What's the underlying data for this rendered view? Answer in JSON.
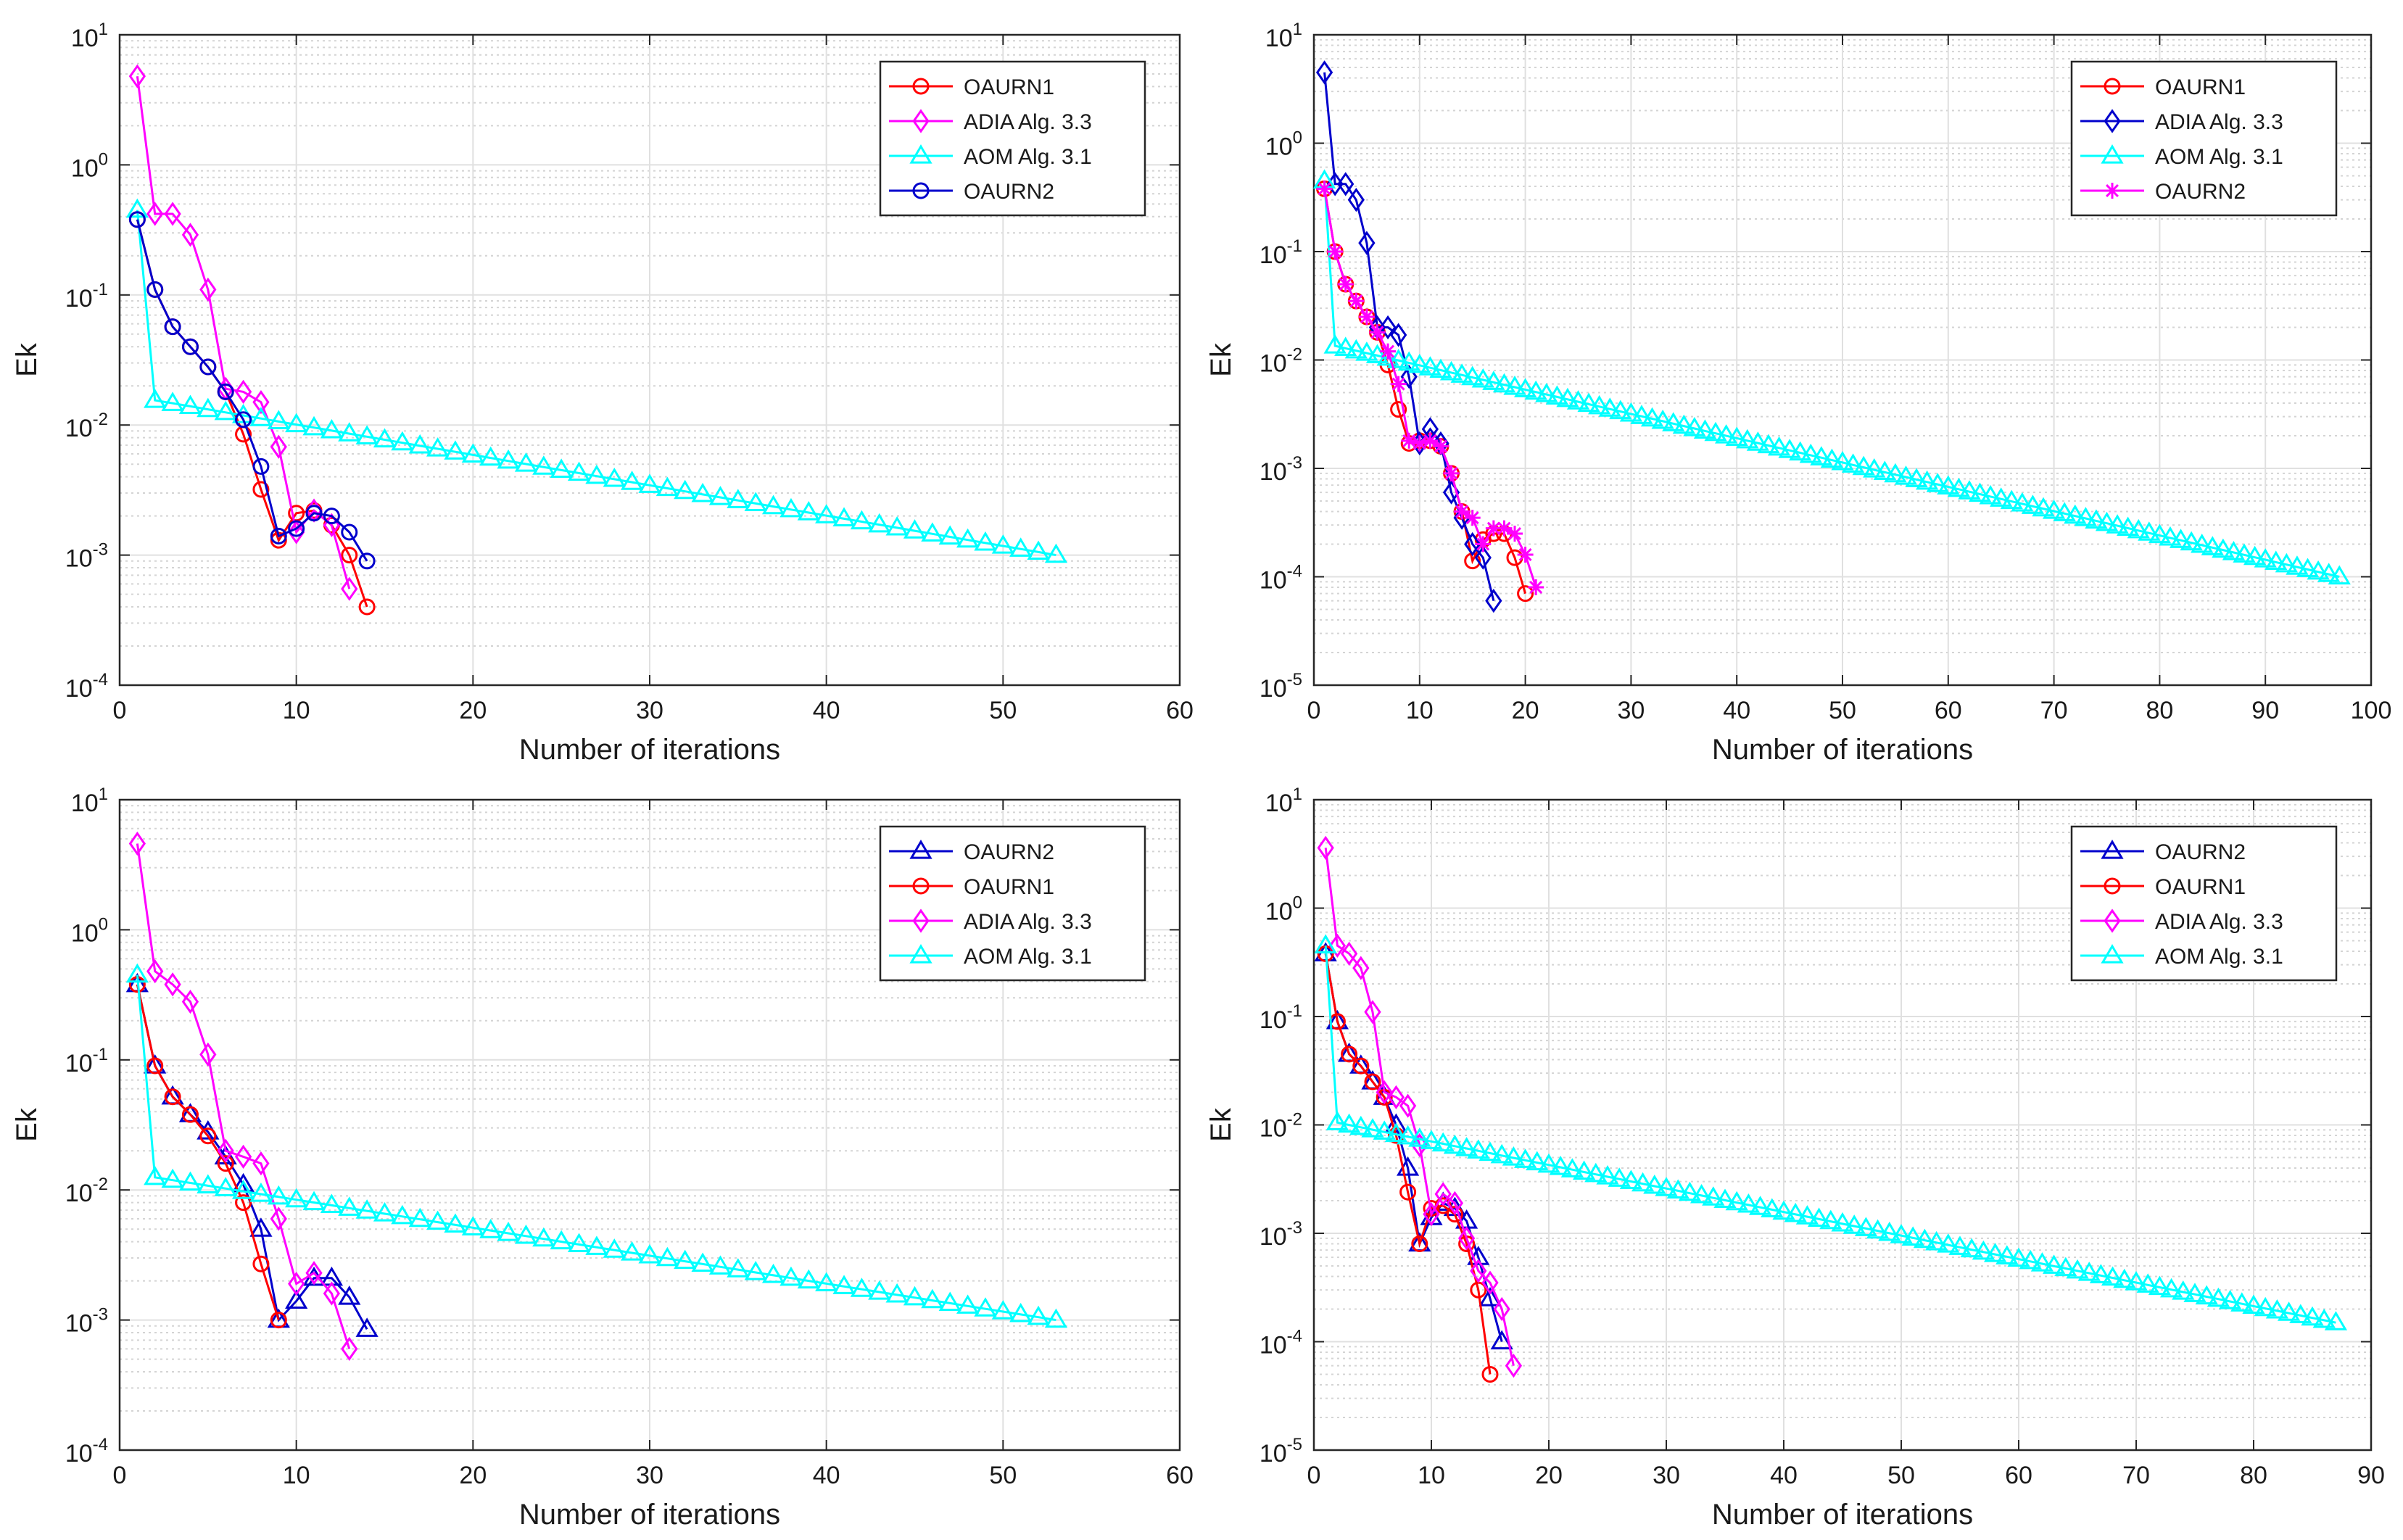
{
  "chart_data": [
    {
      "type": "line",
      "yscale": "log",
      "xlabel": "Number of iterations",
      "ylabel": "Ek",
      "xlim": [
        0,
        60
      ],
      "xticks": [
        "0",
        "10",
        "20",
        "30",
        "40",
        "50",
        "60"
      ],
      "ylim_exp": [
        -4,
        1
      ],
      "yticks": [
        {
          "base": "10",
          "exp": "-4"
        },
        {
          "base": "10",
          "exp": "-3"
        },
        {
          "base": "10",
          "exp": "-2"
        },
        {
          "base": "10",
          "exp": "-1"
        },
        {
          "base": "10",
          "exp": "0"
        },
        {
          "base": "10",
          "exp": "1"
        }
      ],
      "grid": true,
      "legend_position": "top-right",
      "series": [
        {
          "name": "OAURN1",
          "color": "#ff0000",
          "marker": "circle",
          "x": [
            1,
            2,
            3,
            4,
            5,
            6,
            7,
            8,
            9,
            10,
            11,
            12,
            13,
            14
          ],
          "y": [
            0.38,
            0.11,
            0.057,
            0.04,
            0.028,
            0.018,
            0.0085,
            0.0032,
            0.0013,
            0.0021,
            0.0022,
            0.0017,
            0.001,
            0.0004
          ]
        },
        {
          "name": "ADIA Alg. 3.3",
          "color": "#ff00ff",
          "marker": "diamond",
          "x": [
            1,
            2,
            3,
            4,
            5,
            6,
            7,
            8,
            9,
            10,
            11,
            12,
            13
          ],
          "y": [
            4.8,
            0.42,
            0.42,
            0.29,
            0.11,
            0.019,
            0.018,
            0.015,
            0.0068,
            0.0015,
            0.0022,
            0.0017,
            0.00055
          ]
        },
        {
          "name": "AOM Alg. 3.1",
          "color": "#00ffff",
          "marker": "triangle",
          "x_start": 1,
          "x_end": 53,
          "y_first": 0.45,
          "y_second": 0.0155,
          "y_last": 0.001
        },
        {
          "name": "OAURN2",
          "color": "#0000cc",
          "marker": "circle",
          "x": [
            1,
            2,
            3,
            4,
            5,
            6,
            7,
            8,
            9,
            10,
            11,
            12,
            13,
            14
          ],
          "y": [
            0.38,
            0.11,
            0.057,
            0.04,
            0.028,
            0.018,
            0.011,
            0.0048,
            0.0014,
            0.0016,
            0.0021,
            0.002,
            0.0015,
            0.0009
          ]
        }
      ]
    },
    {
      "type": "line",
      "yscale": "log",
      "xlabel": "Number of iterations",
      "ylabel": "Ek",
      "xlim": [
        0,
        100
      ],
      "xticks": [
        "0",
        "10",
        "20",
        "30",
        "40",
        "50",
        "60",
        "70",
        "80",
        "90",
        "100"
      ],
      "ylim_exp": [
        -5,
        1
      ],
      "yticks": [
        {
          "base": "10",
          "exp": "-5"
        },
        {
          "base": "10",
          "exp": "-4"
        },
        {
          "base": "10",
          "exp": "-3"
        },
        {
          "base": "10",
          "exp": "-2"
        },
        {
          "base": "10",
          "exp": "-1"
        },
        {
          "base": "10",
          "exp": "0"
        },
        {
          "base": "10",
          "exp": "1"
        }
      ],
      "grid": true,
      "legend_position": "top-right",
      "series": [
        {
          "name": "OAURN1",
          "color": "#ff0000",
          "marker": "circle",
          "x": [
            1,
            2,
            3,
            4,
            5,
            6,
            7,
            8,
            9,
            10,
            11,
            12,
            13,
            14,
            15,
            16,
            17,
            18,
            19,
            20
          ],
          "y": [
            0.38,
            0.1,
            0.05,
            0.035,
            0.025,
            0.018,
            0.009,
            0.0035,
            0.0017,
            0.0018,
            0.0018,
            0.0016,
            0.0009,
            0.0004,
            0.00014,
            0.00022,
            0.00025,
            0.00025,
            0.00015,
            7e-05
          ]
        },
        {
          "name": "ADIA Alg. 3.3",
          "color": "#0000cc",
          "marker": "diamond",
          "x": [
            1,
            2,
            3,
            4,
            5,
            6,
            7,
            8,
            9,
            10,
            11,
            12,
            13,
            14,
            15,
            16,
            17
          ],
          "y": [
            4.5,
            0.42,
            0.42,
            0.3,
            0.12,
            0.02,
            0.02,
            0.017,
            0.007,
            0.0017,
            0.0023,
            0.0017,
            0.0006,
            0.00035,
            0.0002,
            0.00015,
            6e-05
          ]
        },
        {
          "name": "AOM Alg. 3.1",
          "color": "#00ffff",
          "marker": "triangle",
          "x_start": 1,
          "x_end": 97,
          "y_first": 0.45,
          "y_second": 0.0135,
          "y_last": 0.0001
        },
        {
          "name": "OAURN2",
          "color": "#ff00ff",
          "marker": "star",
          "x": [
            1,
            2,
            3,
            4,
            5,
            6,
            7,
            8,
            9,
            10,
            11,
            12,
            13,
            14,
            15,
            16,
            17,
            18,
            19,
            20,
            21
          ],
          "y": [
            0.38,
            0.1,
            0.05,
            0.035,
            0.025,
            0.018,
            0.012,
            0.006,
            0.0018,
            0.0017,
            0.0018,
            0.0016,
            0.0009,
            0.0004,
            0.00035,
            0.0002,
            0.00028,
            0.00028,
            0.00025,
            0.00016,
            8e-05
          ]
        }
      ]
    },
    {
      "type": "line",
      "yscale": "log",
      "xlabel": "Number of iterations",
      "ylabel": "Ek",
      "xlim": [
        0,
        60
      ],
      "xticks": [
        "0",
        "10",
        "20",
        "30",
        "40",
        "50",
        "60"
      ],
      "ylim_exp": [
        -4,
        1
      ],
      "yticks": [
        {
          "base": "10",
          "exp": "-4"
        },
        {
          "base": "10",
          "exp": "-3"
        },
        {
          "base": "10",
          "exp": "-2"
        },
        {
          "base": "10",
          "exp": "-1"
        },
        {
          "base": "10",
          "exp": "0"
        },
        {
          "base": "10",
          "exp": "1"
        }
      ],
      "grid": true,
      "legend_position": "top-right",
      "series": [
        {
          "name": "OAURN2",
          "color": "#0000cc",
          "marker": "triangle",
          "x": [
            1,
            2,
            3,
            4,
            5,
            6,
            7,
            8,
            9,
            10,
            11,
            12,
            13,
            14
          ],
          "y": [
            0.38,
            0.09,
            0.052,
            0.038,
            0.028,
            0.018,
            0.011,
            0.005,
            0.001,
            0.0014,
            0.0021,
            0.0021,
            0.0015,
            0.00085
          ]
        },
        {
          "name": "OAURN1",
          "color": "#ff0000",
          "marker": "circle",
          "x": [
            1,
            2,
            3,
            4,
            5,
            6,
            7,
            8,
            9
          ],
          "y": [
            0.38,
            0.09,
            0.052,
            0.038,
            0.026,
            0.016,
            0.008,
            0.0027,
            0.001
          ]
        },
        {
          "name": "ADIA Alg. 3.3",
          "color": "#ff00ff",
          "marker": "diamond",
          "x": [
            1,
            2,
            3,
            4,
            5,
            6,
            7,
            8,
            9,
            10,
            11,
            12,
            13
          ],
          "y": [
            4.6,
            0.48,
            0.38,
            0.28,
            0.11,
            0.02,
            0.018,
            0.016,
            0.006,
            0.0019,
            0.0023,
            0.0016,
            0.0006
          ]
        },
        {
          "name": "AOM Alg. 3.1",
          "color": "#00ffff",
          "marker": "triangle",
          "x_start": 1,
          "x_end": 53,
          "y_first": 0.45,
          "y_second": 0.0125,
          "y_last": 0.001
        }
      ]
    },
    {
      "type": "line",
      "yscale": "log",
      "xlabel": "Number of iterations",
      "ylabel": "Ek",
      "xlim": [
        0,
        90
      ],
      "xticks": [
        "0",
        "10",
        "20",
        "30",
        "40",
        "50",
        "60",
        "70",
        "80",
        "90"
      ],
      "ylim_exp": [
        -5,
        1
      ],
      "yticks": [
        {
          "base": "10",
          "exp": "-5"
        },
        {
          "base": "10",
          "exp": "-4"
        },
        {
          "base": "10",
          "exp": "-3"
        },
        {
          "base": "10",
          "exp": "-2"
        },
        {
          "base": "10",
          "exp": "-1"
        },
        {
          "base": "10",
          "exp": "0"
        },
        {
          "base": "10",
          "exp": "1"
        }
      ],
      "grid": true,
      "legend_position": "top-right",
      "series": [
        {
          "name": "OAURN2",
          "color": "#0000cc",
          "marker": "triangle",
          "x": [
            1,
            2,
            3,
            4,
            5,
            6,
            7,
            8,
            9,
            10,
            11,
            12,
            13,
            14,
            15,
            16
          ],
          "y": [
            0.38,
            0.09,
            0.045,
            0.035,
            0.025,
            0.018,
            0.01,
            0.004,
            0.0008,
            0.0014,
            0.0019,
            0.0017,
            0.0013,
            0.0006,
            0.00025,
            0.0001
          ]
        },
        {
          "name": "OAURN1",
          "color": "#ff0000",
          "marker": "circle",
          "x": [
            1,
            2,
            3,
            4,
            5,
            6,
            7,
            8,
            9,
            10,
            11,
            12,
            13,
            14,
            15
          ],
          "y": [
            0.38,
            0.09,
            0.045,
            0.035,
            0.025,
            0.018,
            0.008,
            0.0024,
            0.0008,
            0.0017,
            0.0018,
            0.0015,
            0.0008,
            0.0003,
            5e-05
          ]
        },
        {
          "name": "ADIA Alg. 3.3",
          "color": "#ff00ff",
          "marker": "diamond",
          "x": [
            1,
            2,
            3,
            4,
            5,
            6,
            7,
            8,
            9,
            10,
            11,
            12,
            13,
            14,
            15,
            16,
            17
          ],
          "y": [
            3.6,
            0.45,
            0.38,
            0.28,
            0.11,
            0.02,
            0.018,
            0.015,
            0.0065,
            0.0015,
            0.0023,
            0.0019,
            0.0009,
            0.00045,
            0.00035,
            0.0002,
            6e-05
          ]
        },
        {
          "name": "AOM Alg. 3.1",
          "color": "#00ffff",
          "marker": "triangle",
          "x_start": 1,
          "x_end": 87,
          "y_first": 0.45,
          "y_second": 0.0105,
          "y_last": 0.00015
        }
      ]
    }
  ]
}
